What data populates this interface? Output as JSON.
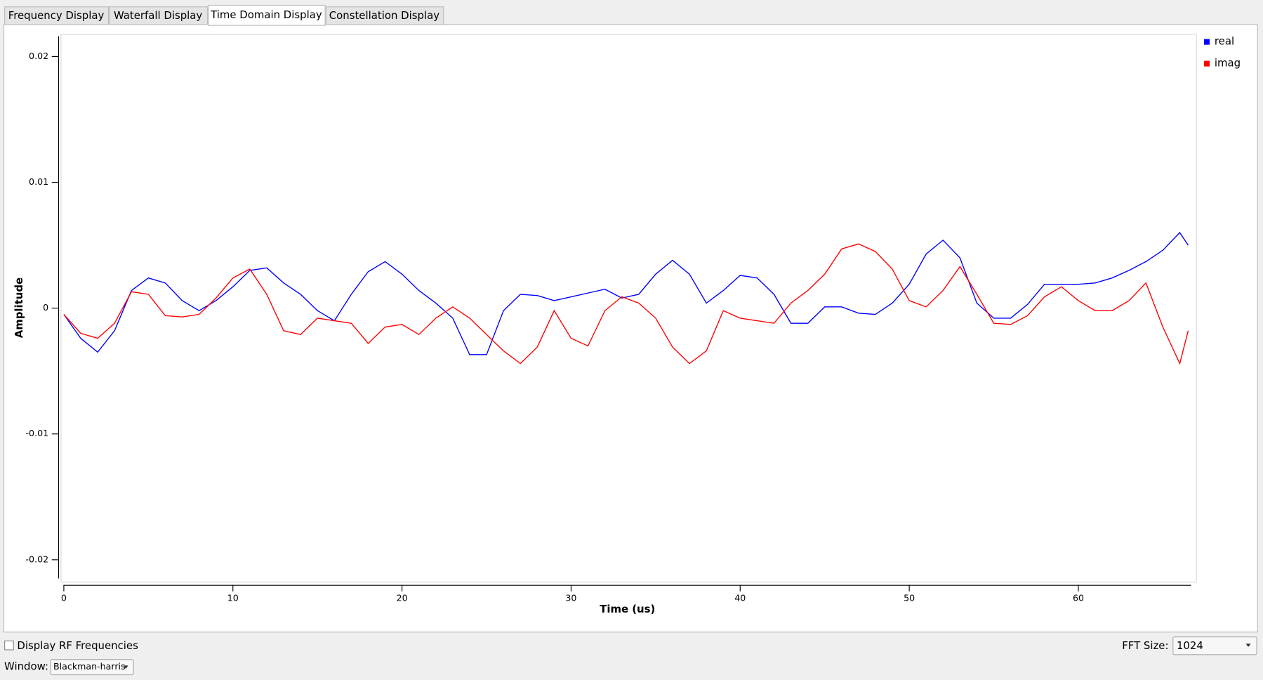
{
  "tabs": [
    {
      "label": "Frequency Display",
      "selected": false
    },
    {
      "label": "Waterfall Display",
      "selected": false
    },
    {
      "label": "Time Domain Display",
      "selected": true
    },
    {
      "label": "Constellation Display",
      "selected": false
    }
  ],
  "chart_data": {
    "type": "line",
    "x_label": "Time (us)",
    "y_label": "Amplitude",
    "x": [
      0,
      1,
      2,
      3,
      4,
      5,
      6,
      7,
      8,
      9,
      10,
      11,
      12,
      13,
      14,
      15,
      16,
      17,
      18,
      19,
      20,
      21,
      22,
      23,
      24,
      25,
      26,
      27,
      28,
      29,
      30,
      31,
      32,
      33,
      34,
      35,
      36,
      37,
      38,
      39,
      40,
      41,
      42,
      43,
      44,
      45,
      46,
      47,
      48,
      49,
      50,
      51,
      52,
      53,
      54,
      55,
      56,
      57,
      58,
      59,
      60,
      61,
      62,
      63,
      64,
      65,
      66,
      66.5
    ],
    "series": [
      {
        "name": "real",
        "color": "#0000ff",
        "values": [
          -0.0005,
          -0.0024,
          -0.0035,
          -0.0018,
          0.0014,
          0.0024,
          0.002,
          0.0006,
          -0.0002,
          0.0006,
          0.0017,
          0.003,
          0.0032,
          0.002,
          0.0011,
          -0.0002,
          -0.001,
          0.0011,
          0.0029,
          0.0037,
          0.0027,
          0.0014,
          0.0004,
          -0.0008,
          -0.0037,
          -0.0037,
          -0.0002,
          0.0011,
          0.001,
          0.0006,
          0.0009,
          0.0012,
          0.0015,
          0.0008,
          0.0011,
          0.0027,
          0.0038,
          0.0027,
          0.0004,
          0.0014,
          0.0026,
          0.0024,
          0.0011,
          -0.0012,
          -0.0012,
          0.0001,
          0.0001,
          -0.0004,
          -0.0005,
          0.0004,
          0.0019,
          0.0043,
          0.0054,
          0.004,
          0.0004,
          -0.0008,
          -0.0008,
          0.0003,
          0.0019,
          0.0019,
          0.0019,
          0.002,
          0.0024,
          0.003,
          0.0037,
          0.0046,
          0.006,
          0.005
        ]
      },
      {
        "name": "imag",
        "color": "#ff0000",
        "values": [
          -0.0005,
          -0.002,
          -0.0024,
          -0.0012,
          0.0013,
          0.0011,
          -0.0006,
          -0.0007,
          -0.0005,
          0.0008,
          0.0024,
          0.0031,
          0.0011,
          -0.0018,
          -0.0021,
          -0.0008,
          -0.001,
          -0.0012,
          -0.0028,
          -0.0015,
          -0.0013,
          -0.0021,
          -0.0008,
          0.0001,
          -0.0008,
          -0.0021,
          -0.0034,
          -0.0044,
          -0.0031,
          -0.0002,
          -0.0024,
          -0.003,
          -0.0002,
          0.0009,
          0.0004,
          -0.0008,
          -0.0031,
          -0.0044,
          -0.0034,
          -0.0002,
          -0.0008,
          -0.001,
          -0.0012,
          0.0004,
          0.0014,
          0.0027,
          0.0047,
          0.0051,
          0.0045,
          0.0031,
          0.0006,
          0.0001,
          0.0014,
          0.0033,
          0.0011,
          -0.0012,
          -0.0013,
          -0.0006,
          0.0009,
          0.0017,
          0.0006,
          -0.0002,
          -0.0002,
          0.0006,
          0.002,
          -0.0015,
          -0.0044,
          -0.0018
        ]
      }
    ],
    "xlim": [
      0,
      66.67
    ],
    "ylim": [
      -0.022,
      0.0218
    ],
    "xticks": [
      0,
      10,
      20,
      30,
      40,
      50,
      60
    ],
    "yticks": [
      -0.02,
      -0.01,
      0,
      0.01,
      0.02
    ],
    "legend": "top-right"
  },
  "controls": {
    "rf_checkbox": {
      "label": "Display RF Frequencies",
      "checked": false
    },
    "fft_size": {
      "label": "FFT Size:",
      "value": "1024"
    },
    "window": {
      "label": "Window:",
      "value": "Blackman-harris"
    }
  }
}
